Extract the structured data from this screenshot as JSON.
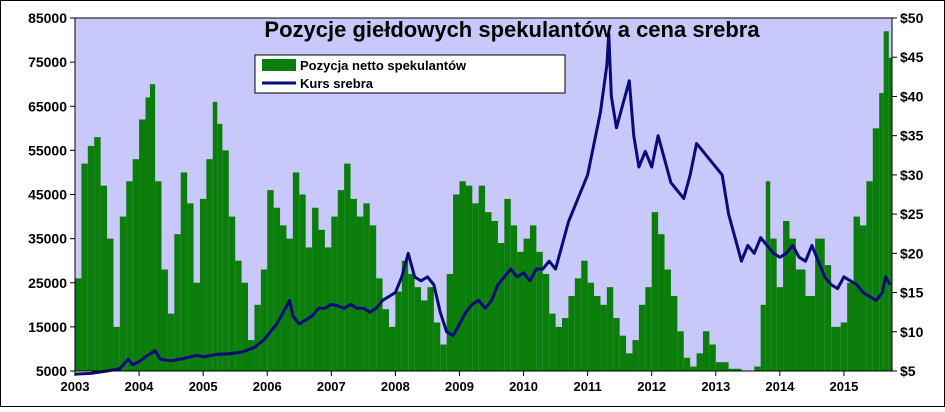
{
  "chart_data": {
    "type": "bar+line",
    "title": "Pozycje giełdowych spekulantów a cena srebra",
    "xlabel": "",
    "ylabel_left": "",
    "ylabel_right": "",
    "x_tick_labels": [
      "2003",
      "2004",
      "2005",
      "2006",
      "2007",
      "2008",
      "2009",
      "2010",
      "2011",
      "2012",
      "2013",
      "2014",
      "2015"
    ],
    "y_left_tick_labels": [
      "5000",
      "15000",
      "25000",
      "35000",
      "45000",
      "55000",
      "65000",
      "75000",
      "85000"
    ],
    "y_right_tick_labels": [
      "$5",
      "$10",
      "$15",
      "$20",
      "$25",
      "$30",
      "$35",
      "$40",
      "$45",
      "$50"
    ],
    "xlim": [
      2003.0,
      2015.75
    ],
    "ylim_left": [
      5000,
      85000
    ],
    "ylim_right": [
      5,
      50
    ],
    "legend_position": "top-left, below title",
    "plot_background": "#c8c8fa",
    "series": [
      {
        "name": "Pozycja netto spekulantów",
        "kind": "bar",
        "axis": "left",
        "color": "#0a7d0a",
        "points": [
          [
            2003.0,
            26000
          ],
          [
            2003.1,
            52000
          ],
          [
            2003.2,
            56000
          ],
          [
            2003.3,
            58000
          ],
          [
            2003.4,
            47000
          ],
          [
            2003.5,
            35000
          ],
          [
            2003.6,
            15000
          ],
          [
            2003.7,
            40000
          ],
          [
            2003.8,
            48000
          ],
          [
            2003.9,
            53000
          ],
          [
            2004.0,
            62000
          ],
          [
            2004.1,
            67000
          ],
          [
            2004.17,
            70000
          ],
          [
            2004.25,
            48000
          ],
          [
            2004.35,
            28000
          ],
          [
            2004.45,
            18000
          ],
          [
            2004.55,
            36000
          ],
          [
            2004.65,
            50000
          ],
          [
            2004.75,
            43000
          ],
          [
            2004.85,
            25000
          ],
          [
            2004.95,
            44000
          ],
          [
            2005.05,
            53000
          ],
          [
            2005.15,
            66000
          ],
          [
            2005.22,
            61000
          ],
          [
            2005.3,
            55000
          ],
          [
            2005.4,
            40000
          ],
          [
            2005.5,
            30000
          ],
          [
            2005.6,
            25000
          ],
          [
            2005.7,
            12000
          ],
          [
            2005.8,
            20000
          ],
          [
            2005.9,
            28000
          ],
          [
            2006.0,
            46000
          ],
          [
            2006.1,
            42000
          ],
          [
            2006.2,
            38000
          ],
          [
            2006.3,
            35000
          ],
          [
            2006.4,
            50000
          ],
          [
            2006.5,
            45000
          ],
          [
            2006.6,
            33000
          ],
          [
            2006.7,
            42000
          ],
          [
            2006.8,
            37000
          ],
          [
            2006.9,
            33000
          ],
          [
            2007.0,
            40000
          ],
          [
            2007.1,
            46000
          ],
          [
            2007.2,
            52000
          ],
          [
            2007.3,
            44000
          ],
          [
            2007.4,
            40000
          ],
          [
            2007.5,
            43000
          ],
          [
            2007.6,
            38000
          ],
          [
            2007.7,
            26000
          ],
          [
            2007.8,
            19000
          ],
          [
            2007.9,
            15000
          ],
          [
            2008.0,
            23000
          ],
          [
            2008.1,
            30000
          ],
          [
            2008.2,
            27000
          ],
          [
            2008.3,
            24000
          ],
          [
            2008.4,
            21000
          ],
          [
            2008.5,
            24000
          ],
          [
            2008.6,
            16000
          ],
          [
            2008.7,
            11000
          ],
          [
            2008.8,
            27000
          ],
          [
            2008.9,
            45000
          ],
          [
            2009.0,
            48000
          ],
          [
            2009.1,
            47000
          ],
          [
            2009.2,
            43000
          ],
          [
            2009.3,
            47000
          ],
          [
            2009.4,
            41000
          ],
          [
            2009.5,
            39000
          ],
          [
            2009.6,
            34000
          ],
          [
            2009.7,
            44000
          ],
          [
            2009.8,
            38000
          ],
          [
            2009.9,
            32000
          ],
          [
            2010.0,
            35000
          ],
          [
            2010.1,
            38000
          ],
          [
            2010.2,
            32000
          ],
          [
            2010.3,
            27000
          ],
          [
            2010.4,
            18000
          ],
          [
            2010.5,
            15000
          ],
          [
            2010.6,
            17000
          ],
          [
            2010.7,
            22000
          ],
          [
            2010.8,
            26000
          ],
          [
            2010.9,
            30000
          ],
          [
            2011.0,
            25000
          ],
          [
            2011.1,
            22000
          ],
          [
            2011.2,
            20000
          ],
          [
            2011.3,
            24000
          ],
          [
            2011.4,
            17000
          ],
          [
            2011.5,
            13000
          ],
          [
            2011.6,
            9000
          ],
          [
            2011.7,
            12000
          ],
          [
            2011.8,
            20000
          ],
          [
            2011.9,
            24000
          ],
          [
            2012.0,
            41000
          ],
          [
            2012.1,
            36000
          ],
          [
            2012.2,
            28000
          ],
          [
            2012.3,
            22000
          ],
          [
            2012.4,
            14000
          ],
          [
            2012.5,
            8000
          ],
          [
            2012.6,
            6000
          ],
          [
            2012.7,
            9000
          ],
          [
            2012.8,
            14000
          ],
          [
            2012.9,
            11000
          ],
          [
            2013.0,
            7000
          ],
          [
            2013.2,
            5500
          ],
          [
            2013.4,
            5000
          ],
          [
            2013.6,
            6000
          ],
          [
            2013.7,
            20000
          ],
          [
            2013.78,
            48000
          ],
          [
            2013.85,
            35000
          ],
          [
            2013.95,
            24000
          ],
          [
            2014.05,
            39000
          ],
          [
            2014.15,
            35000
          ],
          [
            2014.25,
            28000
          ],
          [
            2014.4,
            22000
          ],
          [
            2014.55,
            35000
          ],
          [
            2014.7,
            29000
          ],
          [
            2014.8,
            15000
          ],
          [
            2014.95,
            16000
          ],
          [
            2015.05,
            25000
          ],
          [
            2015.15,
            40000
          ],
          [
            2015.25,
            38000
          ],
          [
            2015.35,
            48000
          ],
          [
            2015.45,
            60000
          ],
          [
            2015.55,
            68000
          ],
          [
            2015.62,
            82000
          ],
          [
            2015.7,
            76000
          ]
        ]
      },
      {
        "name": "Kurs srebra",
        "kind": "line",
        "axis": "right",
        "color": "#0a0a7a",
        "points": [
          [
            2003.0,
            4.6
          ],
          [
            2003.25,
            4.7
          ],
          [
            2003.5,
            5.0
          ],
          [
            2003.7,
            5.3
          ],
          [
            2003.83,
            6.5
          ],
          [
            2003.9,
            5.8
          ],
          [
            2004.0,
            6.2
          ],
          [
            2004.1,
            6.8
          ],
          [
            2004.25,
            7.6
          ],
          [
            2004.33,
            6.5
          ],
          [
            2004.5,
            6.3
          ],
          [
            2004.7,
            6.6
          ],
          [
            2004.9,
            7.0
          ],
          [
            2005.0,
            6.8
          ],
          [
            2005.2,
            7.1
          ],
          [
            2005.4,
            7.2
          ],
          [
            2005.6,
            7.4
          ],
          [
            2005.8,
            8.0
          ],
          [
            2005.95,
            9.0
          ],
          [
            2006.05,
            10.0
          ],
          [
            2006.15,
            11.0
          ],
          [
            2006.25,
            12.5
          ],
          [
            2006.35,
            14.0
          ],
          [
            2006.4,
            12.0
          ],
          [
            2006.5,
            11.0
          ],
          [
            2006.6,
            11.5
          ],
          [
            2006.7,
            12.0
          ],
          [
            2006.8,
            13.0
          ],
          [
            2006.9,
            13.0
          ],
          [
            2007.0,
            13.5
          ],
          [
            2007.1,
            13.3
          ],
          [
            2007.2,
            13.0
          ],
          [
            2007.3,
            13.5
          ],
          [
            2007.4,
            13.0
          ],
          [
            2007.5,
            13.0
          ],
          [
            2007.6,
            12.5
          ],
          [
            2007.7,
            13.0
          ],
          [
            2007.8,
            14.0
          ],
          [
            2007.9,
            14.5
          ],
          [
            2008.0,
            15.0
          ],
          [
            2008.1,
            17.0
          ],
          [
            2008.2,
            20.0
          ],
          [
            2008.3,
            17.0
          ],
          [
            2008.4,
            16.5
          ],
          [
            2008.5,
            17.0
          ],
          [
            2008.6,
            16.0
          ],
          [
            2008.7,
            12.5
          ],
          [
            2008.8,
            10.0
          ],
          [
            2008.9,
            9.5
          ],
          [
            2009.0,
            11.0
          ],
          [
            2009.1,
            12.5
          ],
          [
            2009.2,
            13.5
          ],
          [
            2009.3,
            14.0
          ],
          [
            2009.4,
            13.0
          ],
          [
            2009.5,
            14.0
          ],
          [
            2009.6,
            16.0
          ],
          [
            2009.7,
            17.0
          ],
          [
            2009.8,
            18.0
          ],
          [
            2009.9,
            17.0
          ],
          [
            2010.0,
            17.5
          ],
          [
            2010.1,
            16.5
          ],
          [
            2010.2,
            18.0
          ],
          [
            2010.3,
            18.0
          ],
          [
            2010.4,
            19.0
          ],
          [
            2010.5,
            18.0
          ],
          [
            2010.6,
            21.0
          ],
          [
            2010.7,
            24.0
          ],
          [
            2010.8,
            26.0
          ],
          [
            2010.9,
            28.0
          ],
          [
            2011.0,
            30.0
          ],
          [
            2011.1,
            34.0
          ],
          [
            2011.2,
            38.0
          ],
          [
            2011.3,
            44.0
          ],
          [
            2011.33,
            48.0
          ],
          [
            2011.37,
            40.0
          ],
          [
            2011.45,
            36.0
          ],
          [
            2011.55,
            39.0
          ],
          [
            2011.65,
            42.0
          ],
          [
            2011.72,
            35.0
          ],
          [
            2011.8,
            31.0
          ],
          [
            2011.9,
            33.0
          ],
          [
            2012.0,
            31.0
          ],
          [
            2012.1,
            35.0
          ],
          [
            2012.2,
            32.0
          ],
          [
            2012.3,
            29.0
          ],
          [
            2012.4,
            28.0
          ],
          [
            2012.5,
            27.0
          ],
          [
            2012.6,
            30.0
          ],
          [
            2012.7,
            34.0
          ],
          [
            2012.8,
            33.0
          ],
          [
            2012.9,
            32.0
          ],
          [
            2013.0,
            31.0
          ],
          [
            2013.1,
            30.0
          ],
          [
            2013.2,
            25.0
          ],
          [
            2013.3,
            22.0
          ],
          [
            2013.4,
            19.0
          ],
          [
            2013.5,
            21.0
          ],
          [
            2013.6,
            20.0
          ],
          [
            2013.7,
            22.0
          ],
          [
            2013.8,
            21.0
          ],
          [
            2013.9,
            20.0
          ],
          [
            2014.0,
            19.5
          ],
          [
            2014.1,
            20.0
          ],
          [
            2014.2,
            21.0
          ],
          [
            2014.3,
            19.5
          ],
          [
            2014.4,
            19.0
          ],
          [
            2014.5,
            21.0
          ],
          [
            2014.6,
            19.0
          ],
          [
            2014.7,
            17.0
          ],
          [
            2014.8,
            16.0
          ],
          [
            2014.9,
            15.5
          ],
          [
            2015.0,
            17.0
          ],
          [
            2015.1,
            16.5
          ],
          [
            2015.2,
            16.0
          ],
          [
            2015.3,
            15.0
          ],
          [
            2015.4,
            14.5
          ],
          [
            2015.5,
            14.0
          ],
          [
            2015.6,
            15.0
          ],
          [
            2015.65,
            17.0
          ],
          [
            2015.72,
            16.0
          ]
        ]
      }
    ]
  }
}
